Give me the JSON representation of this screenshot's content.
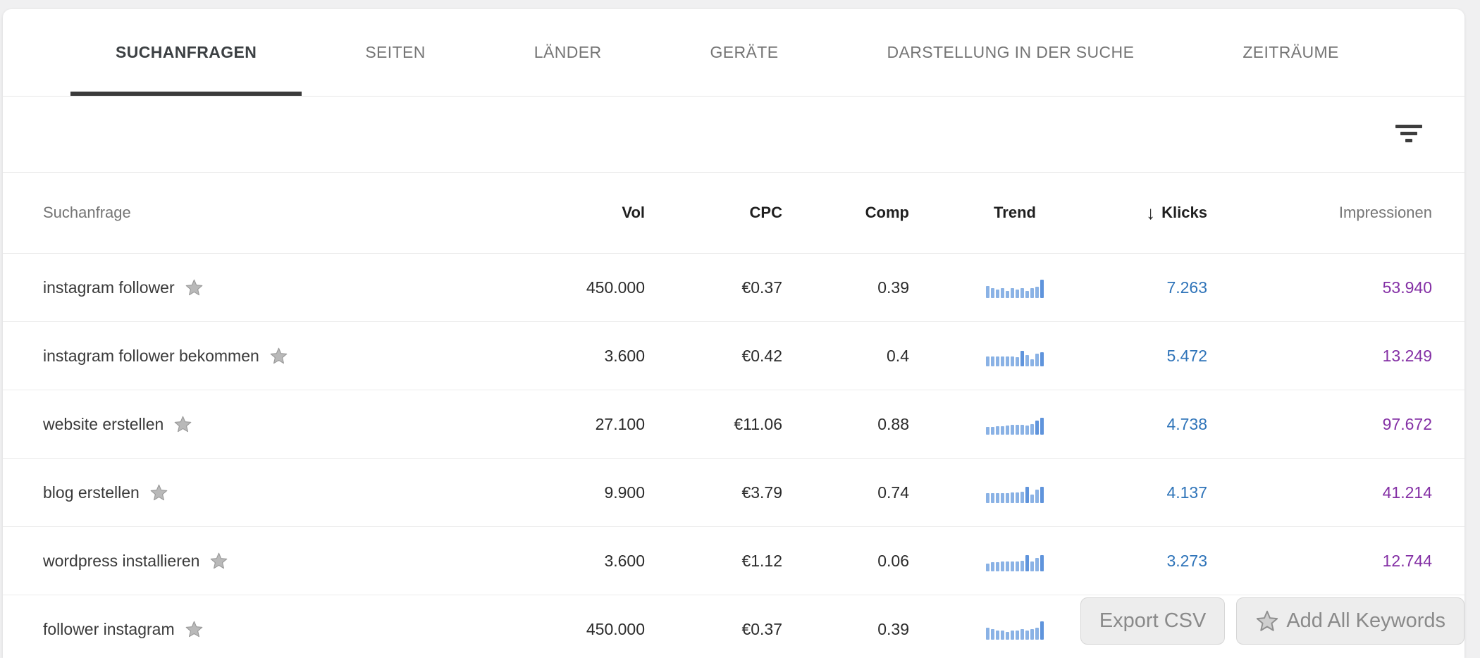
{
  "tabs": [
    {
      "label": "SUCHANFRAGEN",
      "active": true
    },
    {
      "label": "SEITEN",
      "active": false
    },
    {
      "label": "LÄNDER",
      "active": false
    },
    {
      "label": "GERÄTE",
      "active": false
    },
    {
      "label": "DARSTELLUNG IN DER SUCHE",
      "active": false
    },
    {
      "label": "ZEITRÄUME",
      "active": false
    }
  ],
  "filter_bar": {
    "filter_icon": "filter-list-icon"
  },
  "table": {
    "columns": {
      "keyword": "Suchanfrage",
      "vol": "Vol",
      "cpc": "CPC",
      "comp": "Comp",
      "trend": "Trend",
      "klicks": "Klicks",
      "impressionen": "Impressionen"
    },
    "sort": {
      "column": "klicks",
      "direction": "desc",
      "arrow": "↓"
    },
    "rows": [
      {
        "keyword": "instagram follower",
        "vol": "450.000",
        "cpc": "€0.37",
        "comp": "0.39",
        "trend": [
          17,
          14,
          12,
          14,
          10,
          14,
          12,
          14,
          10,
          14,
          16,
          26
        ],
        "klicks": "7.263",
        "impressionen": "53.940"
      },
      {
        "keyword": "instagram follower bekommen",
        "vol": "3.600",
        "cpc": "€0.42",
        "comp": "0.4",
        "trend": [
          14,
          14,
          14,
          14,
          14,
          14,
          13,
          22,
          16,
          10,
          18,
          20
        ],
        "klicks": "5.472",
        "impressionen": "13.249"
      },
      {
        "keyword": "website erstellen",
        "vol": "27.100",
        "cpc": "€11.06",
        "comp": "0.88",
        "trend": [
          11,
          11,
          12,
          12,
          13,
          14,
          14,
          14,
          13,
          15,
          20,
          24
        ],
        "klicks": "4.738",
        "impressionen": "97.672"
      },
      {
        "keyword": "blog erstellen",
        "vol": "9.900",
        "cpc": "€3.79",
        "comp": "0.74",
        "trend": [
          14,
          14,
          14,
          14,
          14,
          15,
          15,
          16,
          23,
          12,
          19,
          23
        ],
        "klicks": "4.137",
        "impressionen": "41.214"
      },
      {
        "keyword": "wordpress installieren",
        "vol": "3.600",
        "cpc": "€1.12",
        "comp": "0.06",
        "trend": [
          11,
          13,
          13,
          14,
          14,
          14,
          14,
          15,
          23,
          14,
          19,
          23
        ],
        "klicks": "3.273",
        "impressionen": "12.744"
      },
      {
        "keyword": "follower instagram",
        "vol": "450.000",
        "cpc": "€0.37",
        "comp": "0.39",
        "trend": [
          17,
          15,
          13,
          13,
          11,
          13,
          13,
          15,
          13,
          15,
          17,
          26
        ],
        "klicks": "",
        "impressionen": ""
      }
    ]
  },
  "overlay": {
    "export_label": "Export CSV",
    "add_all_label": "Add All Keywords",
    "add_all_icon": "star-icon"
  },
  "colors": {
    "klicks_text": "#2f74b9",
    "impressionen_text": "#8430a5",
    "trend_bar": "#8ab2e5",
    "trend_bar_accent": "#5f94dc",
    "tab_underline": "#3b3b3b",
    "row_star": "#b9b9b9",
    "row_star_stroke": "#9a9a9a"
  }
}
